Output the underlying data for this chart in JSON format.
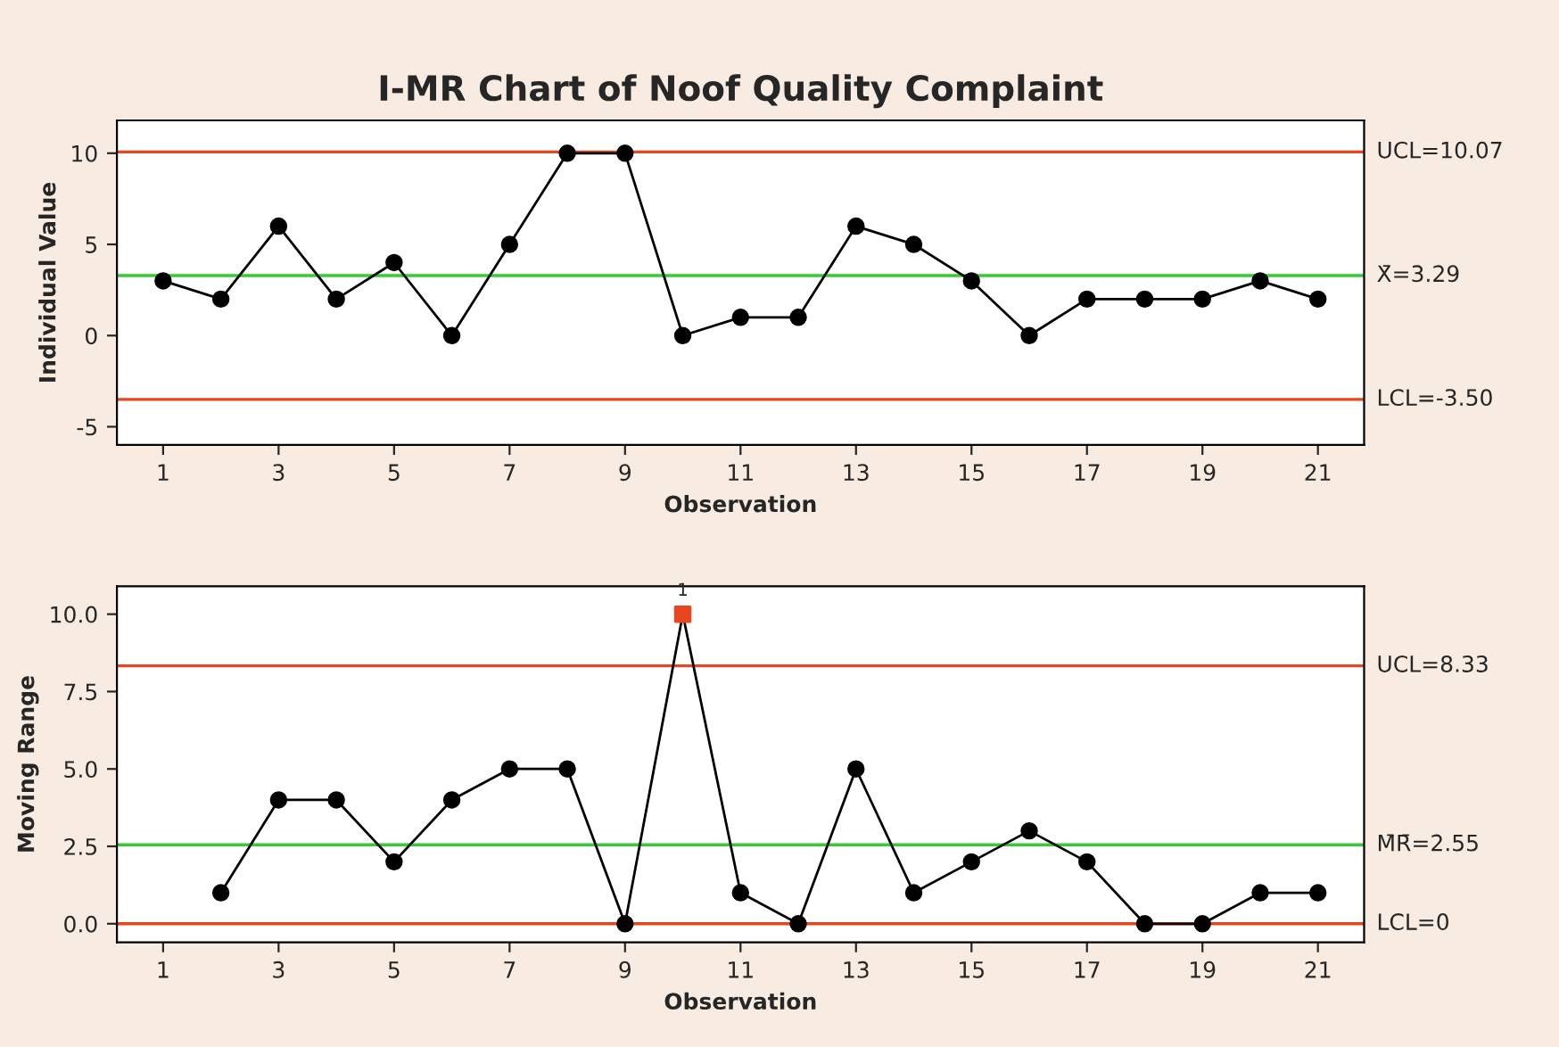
{
  "chart_data": [
    {
      "type": "line",
      "title": "I-MR Chart of Noof Quality Complaint",
      "xlabel": "Observation",
      "ylabel": "Individual Value",
      "x": [
        1,
        2,
        3,
        4,
        5,
        6,
        7,
        8,
        9,
        10,
        11,
        12,
        13,
        14,
        15,
        16,
        17,
        18,
        19,
        20,
        21
      ],
      "series": [
        {
          "color": "#000000",
          "marker": "circle",
          "values": [
            3,
            2,
            6,
            2,
            4,
            0,
            5,
            10,
            10,
            0,
            1,
            1,
            6,
            5,
            3,
            0,
            2,
            2,
            2,
            3,
            2
          ]
        }
      ],
      "xlim": [
        0.2,
        21.8
      ],
      "xticks": [
        1,
        3,
        5,
        7,
        9,
        11,
        13,
        15,
        17,
        19,
        21
      ],
      "ylim": [
        -6,
        11.8
      ],
      "yticks": [
        -5,
        0,
        5,
        10
      ],
      "ref_lines": [
        {
          "axis": "y",
          "value": 10.07,
          "label": "UCL=10.07",
          "color": "#e8461e"
        },
        {
          "axis": "y",
          "value": 3.29,
          "label": "X̄=3.29",
          "color": "#33cc33"
        },
        {
          "axis": "y",
          "value": -3.5,
          "label": "LCL=-3.50",
          "color": "#e8461e"
        }
      ],
      "grid": false,
      "legend": false
    },
    {
      "type": "line",
      "xlabel": "Observation",
      "ylabel": "Moving Range",
      "series": [
        {
          "color": "#000000",
          "marker": "none",
          "x": [
            2,
            3,
            4,
            5,
            6,
            7,
            8,
            9,
            10,
            11,
            12,
            13,
            14,
            15,
            16,
            17,
            18,
            19,
            20,
            21
          ],
          "values": [
            1,
            4,
            4,
            2,
            4,
            5,
            5,
            0,
            10,
            1,
            0,
            5,
            1,
            2,
            3,
            2,
            0,
            0,
            1,
            1
          ]
        },
        {
          "type": "scatter",
          "color": "#000000",
          "marker": "circle",
          "x": [
            2,
            3,
            4,
            5,
            6,
            7,
            8,
            9,
            11,
            12,
            13,
            14,
            15,
            16,
            17,
            18,
            19,
            20,
            21
          ],
          "values": [
            1,
            4,
            4,
            2,
            4,
            5,
            5,
            0,
            1,
            0,
            5,
            1,
            2,
            3,
            2,
            0,
            0,
            1,
            1
          ]
        },
        {
          "type": "scatter",
          "color": "#e8461e",
          "marker": "square",
          "x": [
            10
          ],
          "values": [
            10
          ]
        }
      ],
      "xlim": [
        0.2,
        21.8
      ],
      "xticks": [
        1,
        3,
        5,
        7,
        9,
        11,
        13,
        15,
        17,
        19,
        21
      ],
      "ylim": [
        -0.6,
        10.9
      ],
      "yticks": [
        {
          "value": 0,
          "label": "0.0"
        },
        {
          "value": 2.5,
          "label": "2.5"
        },
        {
          "value": 5,
          "label": "5.0"
        },
        {
          "value": 7.5,
          "label": "7.5"
        },
        {
          "value": 10,
          "label": "10.0"
        }
      ],
      "ref_lines": [
        {
          "axis": "y",
          "value": 8.33,
          "label": "UCL=8.33",
          "color": "#e8461e"
        },
        {
          "axis": "y",
          "value": 2.55,
          "label": "M̄R̄=2.55",
          "color": "#33cc33"
        },
        {
          "axis": "y",
          "value": 0,
          "label": "LCL=0",
          "color": "#e8461e"
        }
      ],
      "annotations": [
        {
          "text": "1",
          "x": 10,
          "y": 10
        }
      ],
      "grid": false,
      "legend": false
    }
  ]
}
